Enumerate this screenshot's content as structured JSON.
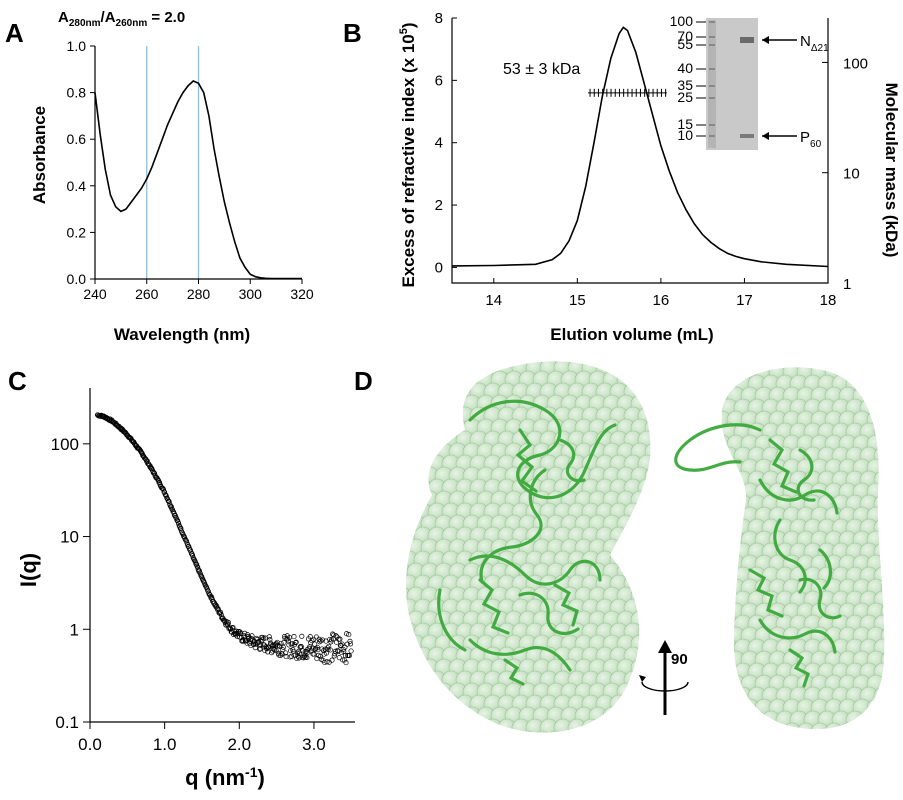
{
  "panels": {
    "a": {
      "label": "A",
      "annotation_main": "A",
      "annotation_sub1": "280nm",
      "annotation_mid": "/A",
      "annotation_sub2": "260nm",
      "annotation_tail": " = 2.0"
    },
    "b": {
      "label": "B",
      "peak_label": "53 ± 3 kDa",
      "gel": {
        "markers": [
          "100",
          "70",
          "55",
          "40",
          "35",
          "25",
          "15",
          "10"
        ],
        "band_n_main": "N",
        "band_n_sub": "Δ21",
        "band_p_main": "P",
        "band_p_sub": "60"
      }
    },
    "c": {
      "label": "C"
    },
    "d": {
      "label": "D",
      "rotation_label": "90"
    }
  },
  "colors": {
    "guide_lines": "#8fbfd8",
    "protein": "#3aa83a",
    "envelope": "#b9dcb5",
    "curve": "#000000"
  },
  "chart_data": [
    {
      "type": "line",
      "panel": "A",
      "xlabel": "Wavelength (nm)",
      "ylabel": "Absorbance",
      "xlim": [
        240,
        320
      ],
      "ylim": [
        0,
        1.0
      ],
      "xticks": [
        "240",
        "260",
        "280",
        "300",
        "320"
      ],
      "yticks": [
        "0.0",
        "0.2",
        "0.4",
        "0.6",
        "0.8",
        "1.0"
      ],
      "vlines": [
        260,
        280
      ],
      "x": [
        240,
        242,
        244,
        246,
        248,
        250,
        252,
        254,
        256,
        258,
        260,
        262,
        264,
        266,
        268,
        270,
        272,
        274,
        276,
        278,
        280,
        282,
        284,
        286,
        288,
        290,
        292,
        294,
        296,
        298,
        300,
        302,
        304,
        306,
        308,
        310,
        315,
        320
      ],
      "y": [
        0.8,
        0.62,
        0.47,
        0.36,
        0.31,
        0.29,
        0.3,
        0.33,
        0.36,
        0.39,
        0.43,
        0.48,
        0.54,
        0.6,
        0.66,
        0.71,
        0.76,
        0.8,
        0.83,
        0.85,
        0.84,
        0.8,
        0.7,
        0.56,
        0.44,
        0.33,
        0.24,
        0.16,
        0.09,
        0.05,
        0.02,
        0.01,
        0.005,
        0.003,
        0.002,
        0.002,
        0.002,
        0.002
      ]
    },
    {
      "type": "line",
      "panel": "B",
      "xlabel": "Elution volume (mL)",
      "ylabel": "Excess of refractive index (x 10",
      "ylabel_sup": "5",
      "ylabel_tail": ")",
      "y2label": "Molecular mass (kDa)",
      "xlim": [
        13.5,
        18
      ],
      "ylim": [
        -0.5,
        8
      ],
      "y2lim_log": [
        1,
        150
      ],
      "xticks": [
        "14",
        "15",
        "16",
        "17",
        "18"
      ],
      "yticks": [
        "0",
        "2",
        "4",
        "6",
        "8"
      ],
      "y2ticks": [
        "1",
        "10",
        "100"
      ],
      "x": [
        13.5,
        14.0,
        14.5,
        14.7,
        14.8,
        14.9,
        15.0,
        15.1,
        15.2,
        15.3,
        15.4,
        15.5,
        15.55,
        15.6,
        15.7,
        15.8,
        15.9,
        16.0,
        16.1,
        16.2,
        16.3,
        16.4,
        16.5,
        16.6,
        16.7,
        16.8,
        16.9,
        17.0,
        17.2,
        17.5,
        18.0
      ],
      "y": [
        0.05,
        0.06,
        0.1,
        0.25,
        0.45,
        0.85,
        1.5,
        2.6,
        4.0,
        5.5,
        6.7,
        7.5,
        7.7,
        7.6,
        6.9,
        5.9,
        4.9,
        3.9,
        3.1,
        2.4,
        1.85,
        1.4,
        1.05,
        0.8,
        0.6,
        0.45,
        0.35,
        0.28,
        0.18,
        0.1,
        0.03
      ],
      "mass_x": [
        15.2,
        15.3,
        15.4,
        15.5,
        15.6,
        15.7,
        15.8,
        15.9,
        16.0
      ],
      "mass_kda": [
        53,
        53,
        53,
        53,
        53,
        53,
        53,
        53,
        53
      ]
    },
    {
      "type": "scatter",
      "panel": "C",
      "xlabel": "q (nm",
      "xlabel_sup": "-1",
      "xlabel_tail": ")",
      "ylabel": "I(q)",
      "xlim": [
        0,
        3.55
      ],
      "ylim_log": [
        0.1,
        400
      ],
      "xticks": [
        "0.0",
        "1.0",
        "2.0",
        "3.0"
      ],
      "yticks": [
        "0.1",
        "1",
        "10",
        "100"
      ],
      "x": [
        0.1,
        0.2,
        0.3,
        0.4,
        0.5,
        0.6,
        0.7,
        0.8,
        0.9,
        1.0,
        1.1,
        1.2,
        1.3,
        1.4,
        1.5,
        1.6,
        1.7,
        1.8,
        1.9,
        2.0,
        2.2,
        2.4,
        2.6,
        2.8,
        3.0,
        3.2,
        3.4,
        3.5
      ],
      "y": [
        205,
        195,
        175,
        150,
        125,
        100,
        78,
        58,
        42,
        30,
        20,
        13,
        8.5,
        5.5,
        3.6,
        2.4,
        1.7,
        1.25,
        1.0,
        0.85,
        0.72,
        0.68,
        0.66,
        0.64,
        0.64,
        0.63,
        0.63,
        0.63
      ]
    }
  ]
}
